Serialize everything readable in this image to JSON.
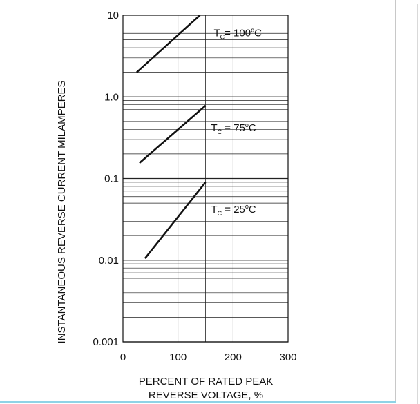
{
  "chart_data": {
    "type": "line",
    "title": "",
    "ylabel": "INSTANTANEOUS REVERSE CURRENT MILAMPERES",
    "xlabel_lines": [
      "PERCENT OF RATED PEAK",
      "REVERSE VOLTAGE, %"
    ],
    "x_scale": "linear",
    "y_scale": "log",
    "xlim": [
      0,
      300
    ],
    "ylim": [
      0.001,
      10
    ],
    "x_ticks": [
      0,
      100,
      200,
      300
    ],
    "x_tick_labels": [
      "0",
      "100",
      "200",
      "300"
    ],
    "y_ticks": [
      0.001,
      0.01,
      0.1,
      1.0,
      10
    ],
    "y_tick_labels": [
      "0.001",
      "0.01",
      "0.1",
      "1.0",
      "10"
    ],
    "x_gridlines": [
      100,
      150,
      200
    ],
    "grid": true,
    "legend": "none",
    "series": [
      {
        "name": "T",
        "sub": "C",
        "temp": "= 100",
        "unit": "C",
        "label_at": [
          165,
          5.5
        ],
        "x": [
          25,
          140
        ],
        "y": [
          2.0,
          10.0
        ]
      },
      {
        "name": "T",
        "sub": "C",
        "temp": " = 75",
        "unit": "C",
        "label_at": [
          160,
          0.38
        ],
        "x": [
          30,
          150
        ],
        "y": [
          0.155,
          0.78
        ]
      },
      {
        "name": "T",
        "sub": "C",
        "temp": " = 25",
        "unit": "C",
        "label_at": [
          160,
          0.038
        ],
        "x": [
          40,
          150
        ],
        "y": [
          0.0105,
          0.09
        ]
      }
    ],
    "degree_symbol": "o",
    "line_color": "#111111",
    "grid_color": "#222222"
  }
}
